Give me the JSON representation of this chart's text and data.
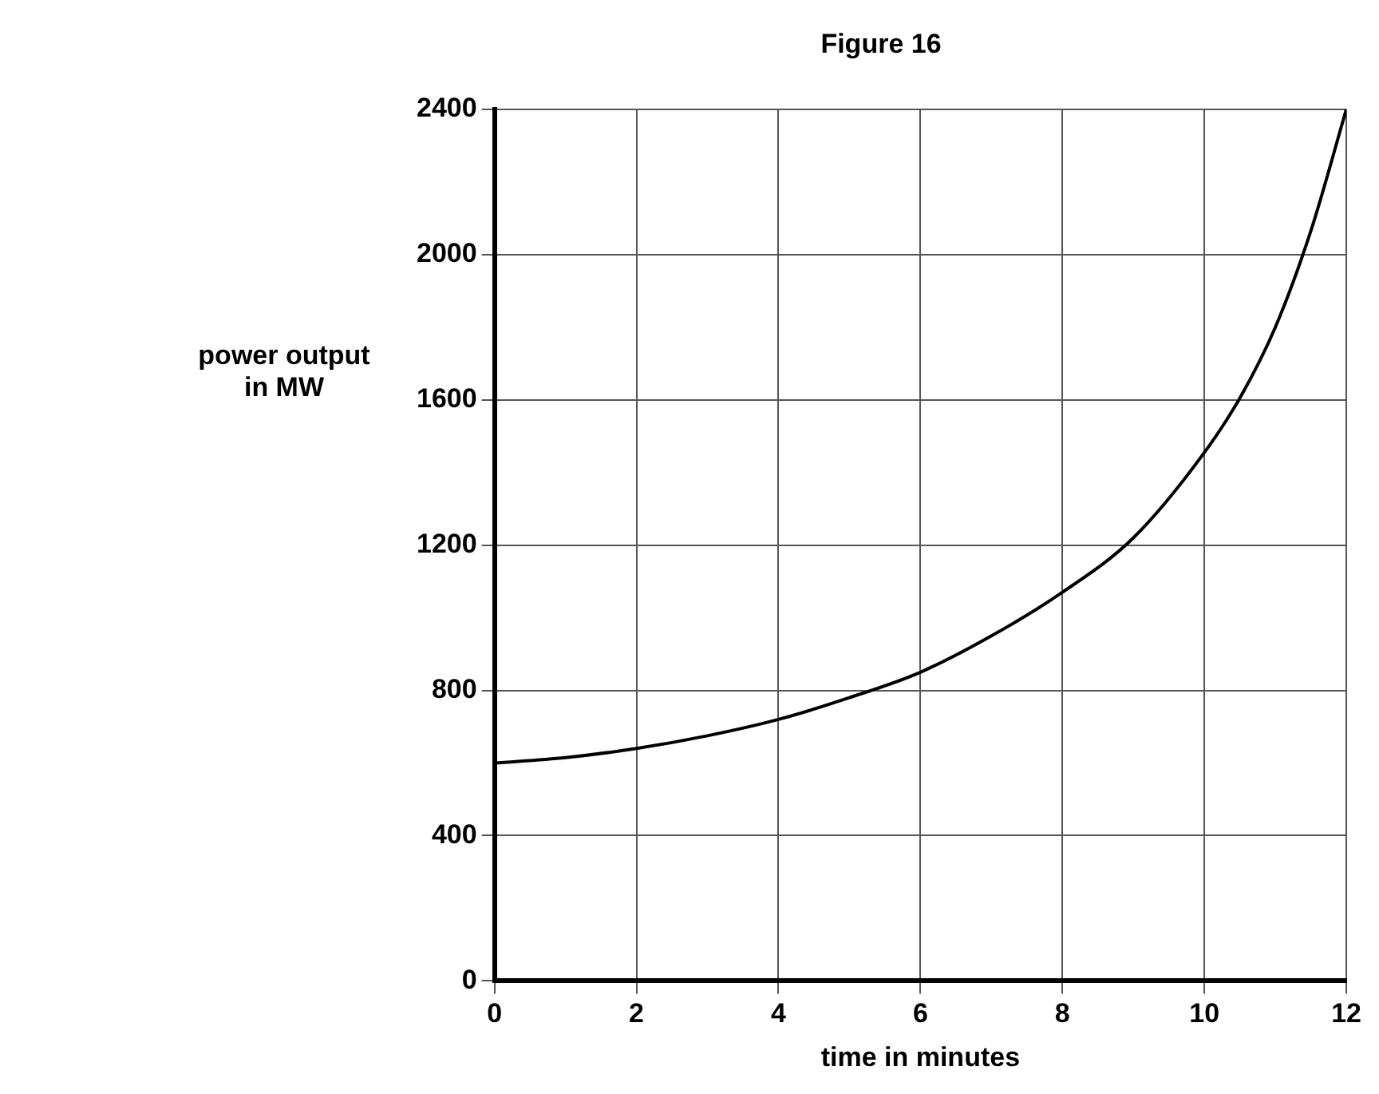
{
  "chart_data": {
    "type": "line",
    "title": "Figure 16",
    "xlabel": "time in minutes",
    "ylabel": "power output\nin MW",
    "series": [
      {
        "color": "#000000",
        "x": [
          0,
          1,
          2,
          3,
          4,
          5,
          6,
          7,
          8,
          9,
          10,
          10.5,
          11,
          11.5,
          12
        ],
        "values": [
          600,
          615,
          640,
          675,
          720,
          780,
          850,
          950,
          1070,
          1220,
          1455,
          1605,
          1800,
          2065,
          2400
        ]
      }
    ],
    "xlim": [
      0,
      12
    ],
    "xticks": [
      0,
      2,
      4,
      6,
      8,
      10,
      12
    ],
    "ylim": [
      0,
      2400
    ],
    "yticks": [
      0,
      400,
      800,
      1200,
      1600,
      2000,
      2400
    ],
    "grid": true,
    "legend": false,
    "marker": "none",
    "line_style": "solid"
  }
}
